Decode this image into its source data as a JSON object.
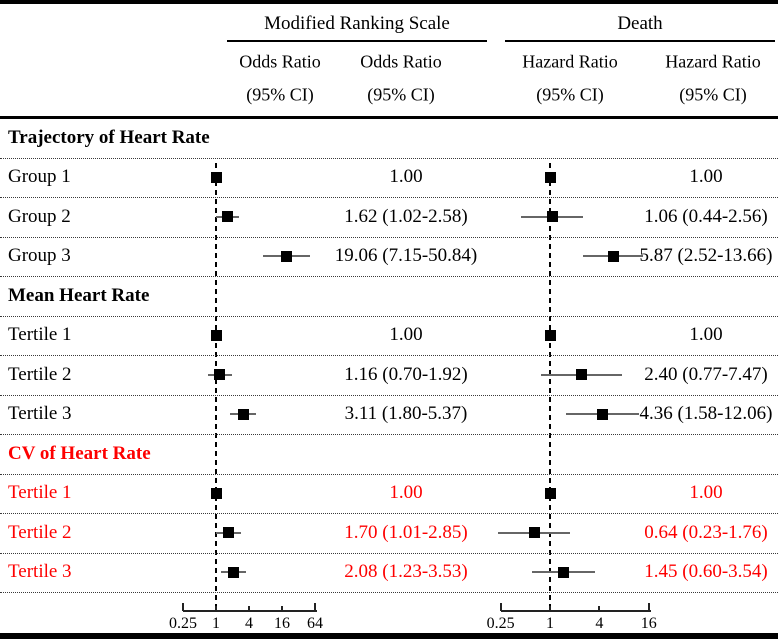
{
  "colors": {
    "black": "#000000",
    "red": "#fe0000",
    "ci_line": "#666666",
    "marker": "#000000"
  },
  "header": {
    "group1": {
      "title": "Modified Ranking Scale",
      "sub1": "Odds Ratio",
      "sub2": "Odds Ratio",
      "ci1": "(95% CI)",
      "ci2": "(95% CI)"
    },
    "group2": {
      "title": "Death",
      "sub1": "Hazard Ratio",
      "sub2": "Hazard Ratio",
      "ci1": "(95% CI)",
      "ci2": "(95% CI)"
    }
  },
  "chart_data": {
    "type": "forest",
    "x_scale": "log4",
    "panels": [
      {
        "id": "mrs",
        "group": "Modified Ranking Scale",
        "measure": "Odds Ratio (95% CI)",
        "ref_line": 1,
        "ticks": [
          0.25,
          1,
          4,
          16,
          64
        ],
        "tick_labels": [
          "0.25",
          "1",
          "4",
          "16",
          "64"
        ]
      },
      {
        "id": "death",
        "group": "Death",
        "measure": "Hazard Ratio (95% CI)",
        "ref_line": 1,
        "ticks": [
          0.25,
          1,
          4,
          16
        ],
        "tick_labels": [
          "0.25",
          "1",
          "4",
          "16"
        ]
      }
    ],
    "rows": [
      {
        "type": "section",
        "label": "Trajectory of Heart Rate",
        "color": "black"
      },
      {
        "type": "data",
        "label": "Group 1",
        "color": "black",
        "mrs": {
          "est": 1.0,
          "lo": null,
          "hi": null,
          "text": "1.00"
        },
        "death": {
          "est": 1.0,
          "lo": null,
          "hi": null,
          "text": "1.00"
        }
      },
      {
        "type": "data",
        "label": "Group 2",
        "color": "black",
        "mrs": {
          "est": 1.62,
          "lo": 1.02,
          "hi": 2.58,
          "text": "1.62 (1.02-2.58)"
        },
        "death": {
          "est": 1.06,
          "lo": 0.44,
          "hi": 2.56,
          "text": "1.06 (0.44-2.56)"
        }
      },
      {
        "type": "data",
        "label": "Group 3",
        "color": "black",
        "mrs": {
          "est": 19.06,
          "lo": 7.15,
          "hi": 50.84,
          "text": "19.06 (7.15-50.84)"
        },
        "death": {
          "est": 5.87,
          "lo": 2.52,
          "hi": 13.66,
          "text": "5.87 (2.52-13.66)"
        }
      },
      {
        "type": "section",
        "label": "Mean Heart Rate",
        "color": "black"
      },
      {
        "type": "data",
        "label": "Tertile 1",
        "color": "black",
        "mrs": {
          "est": 1.0,
          "lo": null,
          "hi": null,
          "text": "1.00"
        },
        "death": {
          "est": 1.0,
          "lo": null,
          "hi": null,
          "text": "1.00"
        }
      },
      {
        "type": "data",
        "label": "Tertile 2",
        "color": "black",
        "mrs": {
          "est": 1.16,
          "lo": 0.7,
          "hi": 1.92,
          "text": "1.16 (0.70-1.92)"
        },
        "death": {
          "est": 2.4,
          "lo": 0.77,
          "hi": 7.47,
          "text": "2.40 (0.77-7.47)"
        }
      },
      {
        "type": "data",
        "label": "Tertile 3",
        "color": "black",
        "mrs": {
          "est": 3.11,
          "lo": 1.8,
          "hi": 5.37,
          "text": "3.11 (1.80-5.37)"
        },
        "death": {
          "est": 4.36,
          "lo": 1.58,
          "hi": 12.06,
          "text": "4.36 (1.58-12.06)"
        }
      },
      {
        "type": "section",
        "label": "CV of Heart Rate",
        "color": "red"
      },
      {
        "type": "data",
        "label": "Tertile 1",
        "color": "red",
        "mrs": {
          "est": 1.0,
          "lo": null,
          "hi": null,
          "text": "1.00"
        },
        "death": {
          "est": 1.0,
          "lo": null,
          "hi": null,
          "text": "1.00"
        }
      },
      {
        "type": "data",
        "label": "Tertile 2",
        "color": "red",
        "mrs": {
          "est": 1.7,
          "lo": 1.01,
          "hi": 2.85,
          "text": "1.70 (1.01-2.85)"
        },
        "death": {
          "est": 0.64,
          "lo": 0.23,
          "hi": 1.76,
          "text": "0.64 (0.23-1.76)"
        }
      },
      {
        "type": "data",
        "label": "Tertile 3",
        "color": "red",
        "mrs": {
          "est": 2.08,
          "lo": 1.23,
          "hi": 3.53,
          "text": "2.08 (1.23-3.53)"
        },
        "death": {
          "est": 1.45,
          "lo": 0.6,
          "hi": 3.54,
          "text": "1.45 (0.60-3.54)"
        }
      }
    ]
  }
}
